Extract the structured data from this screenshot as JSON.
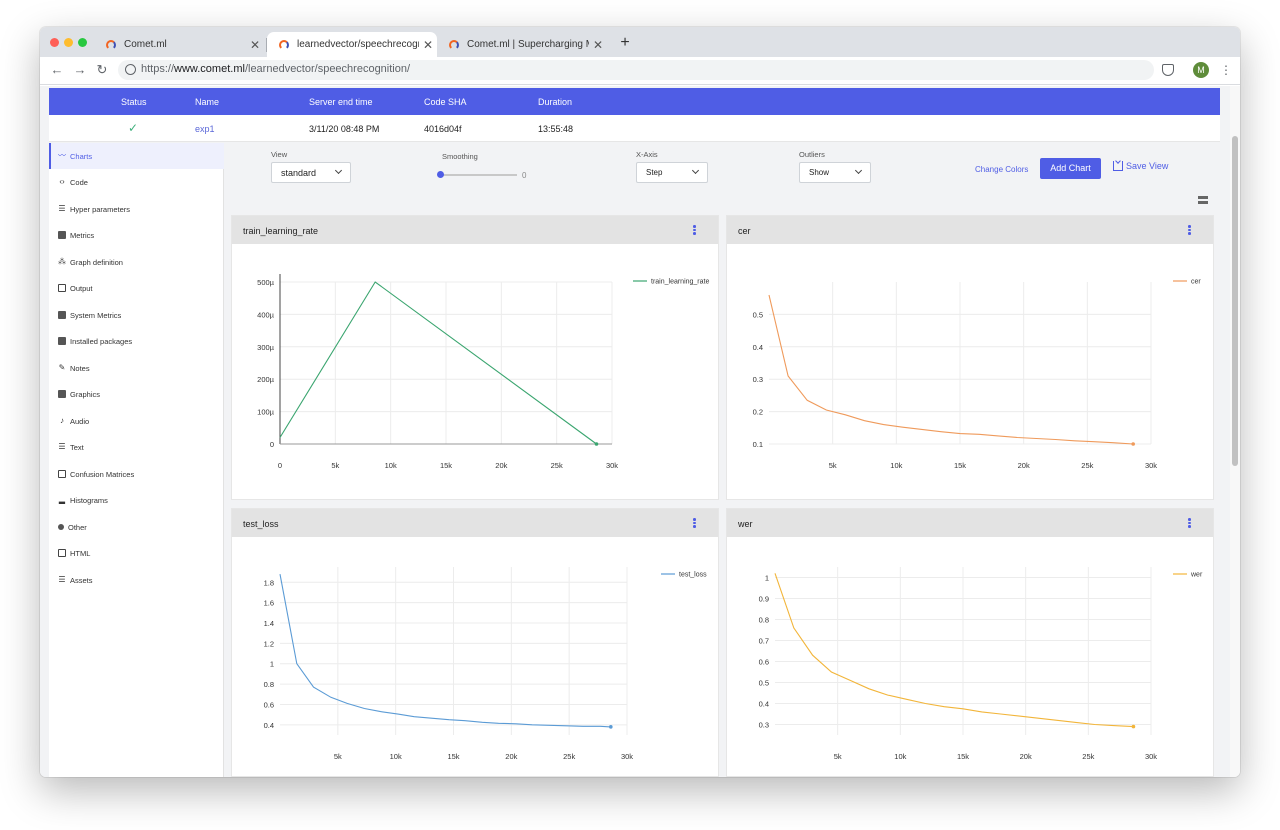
{
  "browser": {
    "tabs": [
      {
        "title": "Comet.ml",
        "active": false
      },
      {
        "title": "learnedvector/speechrecognition",
        "active": true
      },
      {
        "title": "Comet.ml | Supercharging Machine Learning",
        "active": false
      }
    ],
    "url_prefix": "https://",
    "url_host": "www.comet.ml",
    "url_path": "/learnedvector/speechrecognition/",
    "avatar_initial": "M"
  },
  "experiment_table": {
    "headers": [
      "Status",
      "Name",
      "Server end time",
      "Code SHA",
      "Duration"
    ],
    "row": {
      "status": "✓",
      "name": "exp1",
      "server_end_time": "3/11/20 08:48 PM",
      "code_sha": "4016d04f",
      "duration": "13:55:48"
    }
  },
  "sidebar": {
    "items": [
      {
        "label": "Charts",
        "icon": "line-chart-icon",
        "active": true
      },
      {
        "label": "Code",
        "icon": "code-icon"
      },
      {
        "label": "Hyper parameters",
        "icon": "list-icon"
      },
      {
        "label": "Metrics",
        "icon": "table-icon"
      },
      {
        "label": "Graph definition",
        "icon": "graph-icon"
      },
      {
        "label": "Output",
        "icon": "laptop-icon"
      },
      {
        "label": "System Metrics",
        "icon": "server-icon"
      },
      {
        "label": "Installed packages",
        "icon": "package-icon"
      },
      {
        "label": "Notes",
        "icon": "pencil-icon"
      },
      {
        "label": "Graphics",
        "icon": "image-icon"
      },
      {
        "label": "Audio",
        "icon": "music-icon"
      },
      {
        "label": "Text",
        "icon": "text-icon"
      },
      {
        "label": "Confusion Matrices",
        "icon": "grid-icon"
      },
      {
        "label": "Histograms",
        "icon": "histogram-icon"
      },
      {
        "label": "Other",
        "icon": "puzzle-icon"
      },
      {
        "label": "HTML",
        "icon": "html-icon"
      },
      {
        "label": "Assets",
        "icon": "assets-icon"
      }
    ]
  },
  "toolbar": {
    "view_label": "View",
    "view_value": "standard",
    "smoothing_label": "Smoothing",
    "smoothing_value": "0",
    "xaxis_label": "X-Axis",
    "xaxis_value": "Step",
    "outliers_label": "Outliers",
    "outliers_value": "Show",
    "change_colors": "Change Colors",
    "add_chart": "Add Chart",
    "save_view": "Save View"
  },
  "colors": {
    "accent": "#4f5de5",
    "train_learning_rate": "#3aa56f",
    "cer": "#ef9a5b",
    "test_loss": "#5b9bd5",
    "wer": "#f2b53a"
  },
  "chart_data": [
    {
      "id": "train_learning_rate",
      "type": "line",
      "title": "train_learning_rate",
      "legend": "train_learning_rate",
      "xlim": [
        0,
        30000
      ],
      "ylim": [
        0,
        0.0005
      ],
      "xticks": [
        0,
        5000,
        10000,
        15000,
        20000,
        25000,
        30000
      ],
      "xtick_labels": [
        "0",
        "5k",
        "10k",
        "15k",
        "20k",
        "25k",
        "30k"
      ],
      "yticks": [
        0,
        0.0001,
        0.0002,
        0.0003,
        0.0004,
        0.0005
      ],
      "ytick_labels": [
        "0",
        "100µ",
        "200µ",
        "300µ",
        "400µ",
        "500µ"
      ],
      "x": [
        0,
        8600,
        28600
      ],
      "y": [
        2e-05,
        0.0005,
        0.0
      ]
    },
    {
      "id": "cer",
      "type": "line",
      "title": "cer",
      "legend": "cer",
      "xlim": [
        0,
        30000
      ],
      "ylim": [
        0.1,
        0.6
      ],
      "xticks": [
        5000,
        10000,
        15000,
        20000,
        25000,
        30000
      ],
      "xtick_labels": [
        "5k",
        "10k",
        "15k",
        "20k",
        "25k",
        "30k"
      ],
      "yticks": [
        0.1,
        0.2,
        0.3,
        0.4,
        0.5
      ],
      "ytick_labels": [
        "0.1",
        "0.2",
        "0.3",
        "0.4",
        "0.5"
      ],
      "x": [
        0,
        1500,
        3000,
        4500,
        6000,
        7500,
        9000,
        10500,
        12000,
        13500,
        15000,
        16500,
        18000,
        19500,
        21000,
        22500,
        24000,
        25500,
        27000,
        28600
      ],
      "y": [
        0.56,
        0.31,
        0.235,
        0.205,
        0.19,
        0.172,
        0.16,
        0.152,
        0.145,
        0.138,
        0.132,
        0.13,
        0.125,
        0.12,
        0.117,
        0.114,
        0.11,
        0.107,
        0.104,
        0.1
      ]
    },
    {
      "id": "test_loss",
      "type": "line",
      "title": "test_loss",
      "legend": "test_loss",
      "xlim": [
        0,
        30000
      ],
      "ylim": [
        0.3,
        1.95
      ],
      "xticks": [
        5000,
        10000,
        15000,
        20000,
        25000,
        30000
      ],
      "xtick_labels": [
        "5k",
        "10k",
        "15k",
        "20k",
        "25k",
        "30k"
      ],
      "yticks": [
        0.4,
        0.6,
        0.8,
        1.0,
        1.2,
        1.4,
        1.6,
        1.8
      ],
      "ytick_labels": [
        "0.4",
        "0.6",
        "0.8",
        "1",
        "1.2",
        "1.4",
        "1.6",
        "1.8"
      ],
      "x": [
        0,
        1450,
        2900,
        4400,
        5800,
        7300,
        8700,
        10200,
        11600,
        13100,
        14600,
        16000,
        17500,
        18900,
        20400,
        21800,
        23300,
        24800,
        26200,
        27700,
        28600
      ],
      "y": [
        1.88,
        1.0,
        0.77,
        0.67,
        0.61,
        0.56,
        0.53,
        0.505,
        0.48,
        0.465,
        0.45,
        0.44,
        0.425,
        0.415,
        0.41,
        0.4,
        0.395,
        0.39,
        0.385,
        0.385,
        0.38
      ]
    },
    {
      "id": "wer",
      "type": "line",
      "title": "wer",
      "legend": "wer",
      "xlim": [
        0,
        30000
      ],
      "ylim": [
        0.25,
        1.05
      ],
      "xticks": [
        5000,
        10000,
        15000,
        20000,
        25000,
        30000
      ],
      "xtick_labels": [
        "5k",
        "10k",
        "15k",
        "20k",
        "25k",
        "30k"
      ],
      "yticks": [
        0.3,
        0.4,
        0.5,
        0.6,
        0.7,
        0.8,
        0.9,
        1.0
      ],
      "ytick_labels": [
        "0.3",
        "0.4",
        "0.5",
        "0.6",
        "0.7",
        "0.8",
        "0.9",
        "1"
      ],
      "x": [
        0,
        1500,
        3000,
        4500,
        6000,
        7500,
        9000,
        10500,
        12000,
        13500,
        15000,
        16500,
        18000,
        19500,
        21000,
        22500,
        24000,
        25500,
        27000,
        28600
      ],
      "y": [
        1.02,
        0.76,
        0.63,
        0.55,
        0.51,
        0.47,
        0.44,
        0.42,
        0.4,
        0.385,
        0.375,
        0.36,
        0.35,
        0.34,
        0.33,
        0.32,
        0.31,
        0.3,
        0.295,
        0.29
      ]
    }
  ]
}
